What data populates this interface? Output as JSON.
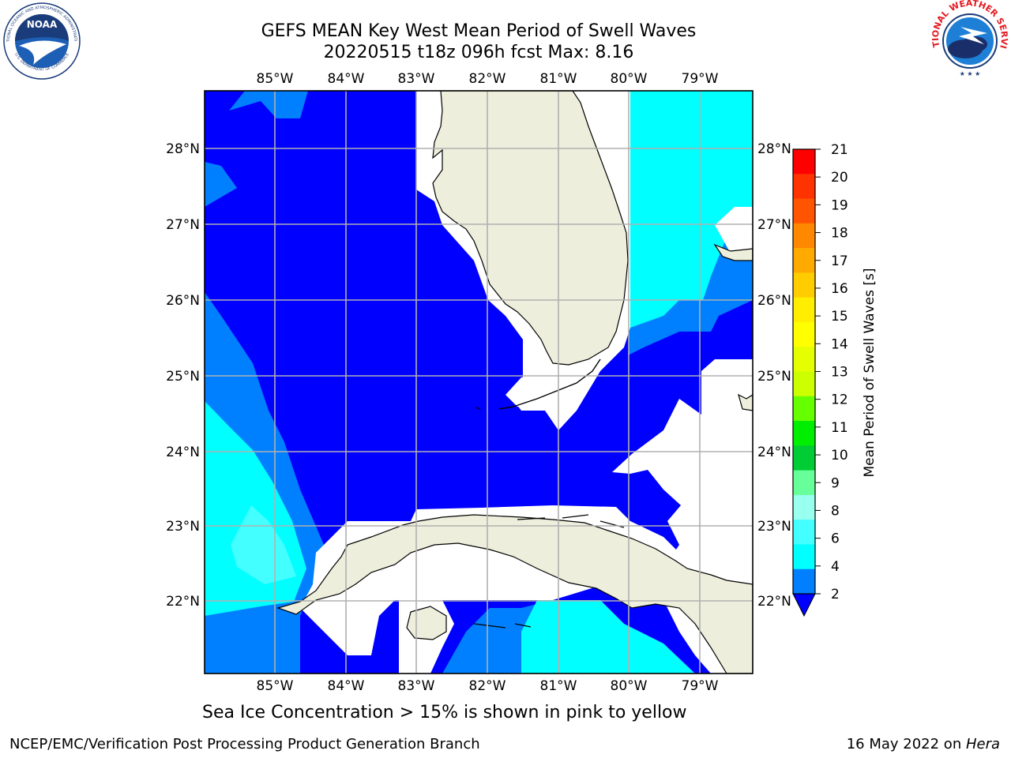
{
  "header": {
    "title_line1": "GEFS MEAN Key West Mean Period of Swell Waves",
    "title_line2": "20220515 t18z 096h fcst   Max: 8.16"
  },
  "logos": {
    "noaa_text": "NOAA",
    "noaa_ring_top": "NATIONAL OCEANIC AND ATMOSPHERIC ADMINISTRATION",
    "noaa_ring_bottom": "U.S. DEPARTMENT OF COMMERCE",
    "nws_ring": "NATIONAL WEATHER SERVICE"
  },
  "map": {
    "lon_labels": [
      "85°W",
      "84°W",
      "83°W",
      "82°W",
      "81°W",
      "80°W",
      "79°W"
    ],
    "lat_labels": [
      "28°N",
      "27°N",
      "26°N",
      "25°N",
      "24°N",
      "23°N",
      "22°N"
    ],
    "colors": {
      "land": "#eeeedd",
      "no_data": "#ffffff",
      "band_2_4": "#0000ff",
      "band_4_6": "#0080ff",
      "band_6_8": "#00ffff",
      "band_8_9": "#44ffff",
      "band_9_10": "#66ffcc",
      "grid": "#b0b0b0",
      "coast": "#000000"
    }
  },
  "colorbar": {
    "label": "Mean Period of Swell Waves [s]",
    "ticks": [
      "21",
      "20",
      "19",
      "18",
      "17",
      "16",
      "15",
      "14",
      "13",
      "12",
      "11",
      "10",
      "9",
      "8",
      "6",
      "4",
      "2"
    ],
    "colors": [
      "#ff0000",
      "#ff3300",
      "#ff5500",
      "#ff8800",
      "#ffaa00",
      "#ffcc00",
      "#ffee00",
      "#ffff00",
      "#e6ff00",
      "#ccff00",
      "#66ff00",
      "#00ee00",
      "#00cc33",
      "#66ff99",
      "#99ffee",
      "#44ffff",
      "#00ffff",
      "#0080ff"
    ],
    "extend_color": "#0000ff"
  },
  "footer": {
    "note": "Sea Ice Concentration > 15% is shown in pink to yellow",
    "left": "NCEP/EMC/Verification Post Processing Product Generation Branch",
    "right_date": "16 May 2022 on ",
    "right_host": "Hera"
  }
}
